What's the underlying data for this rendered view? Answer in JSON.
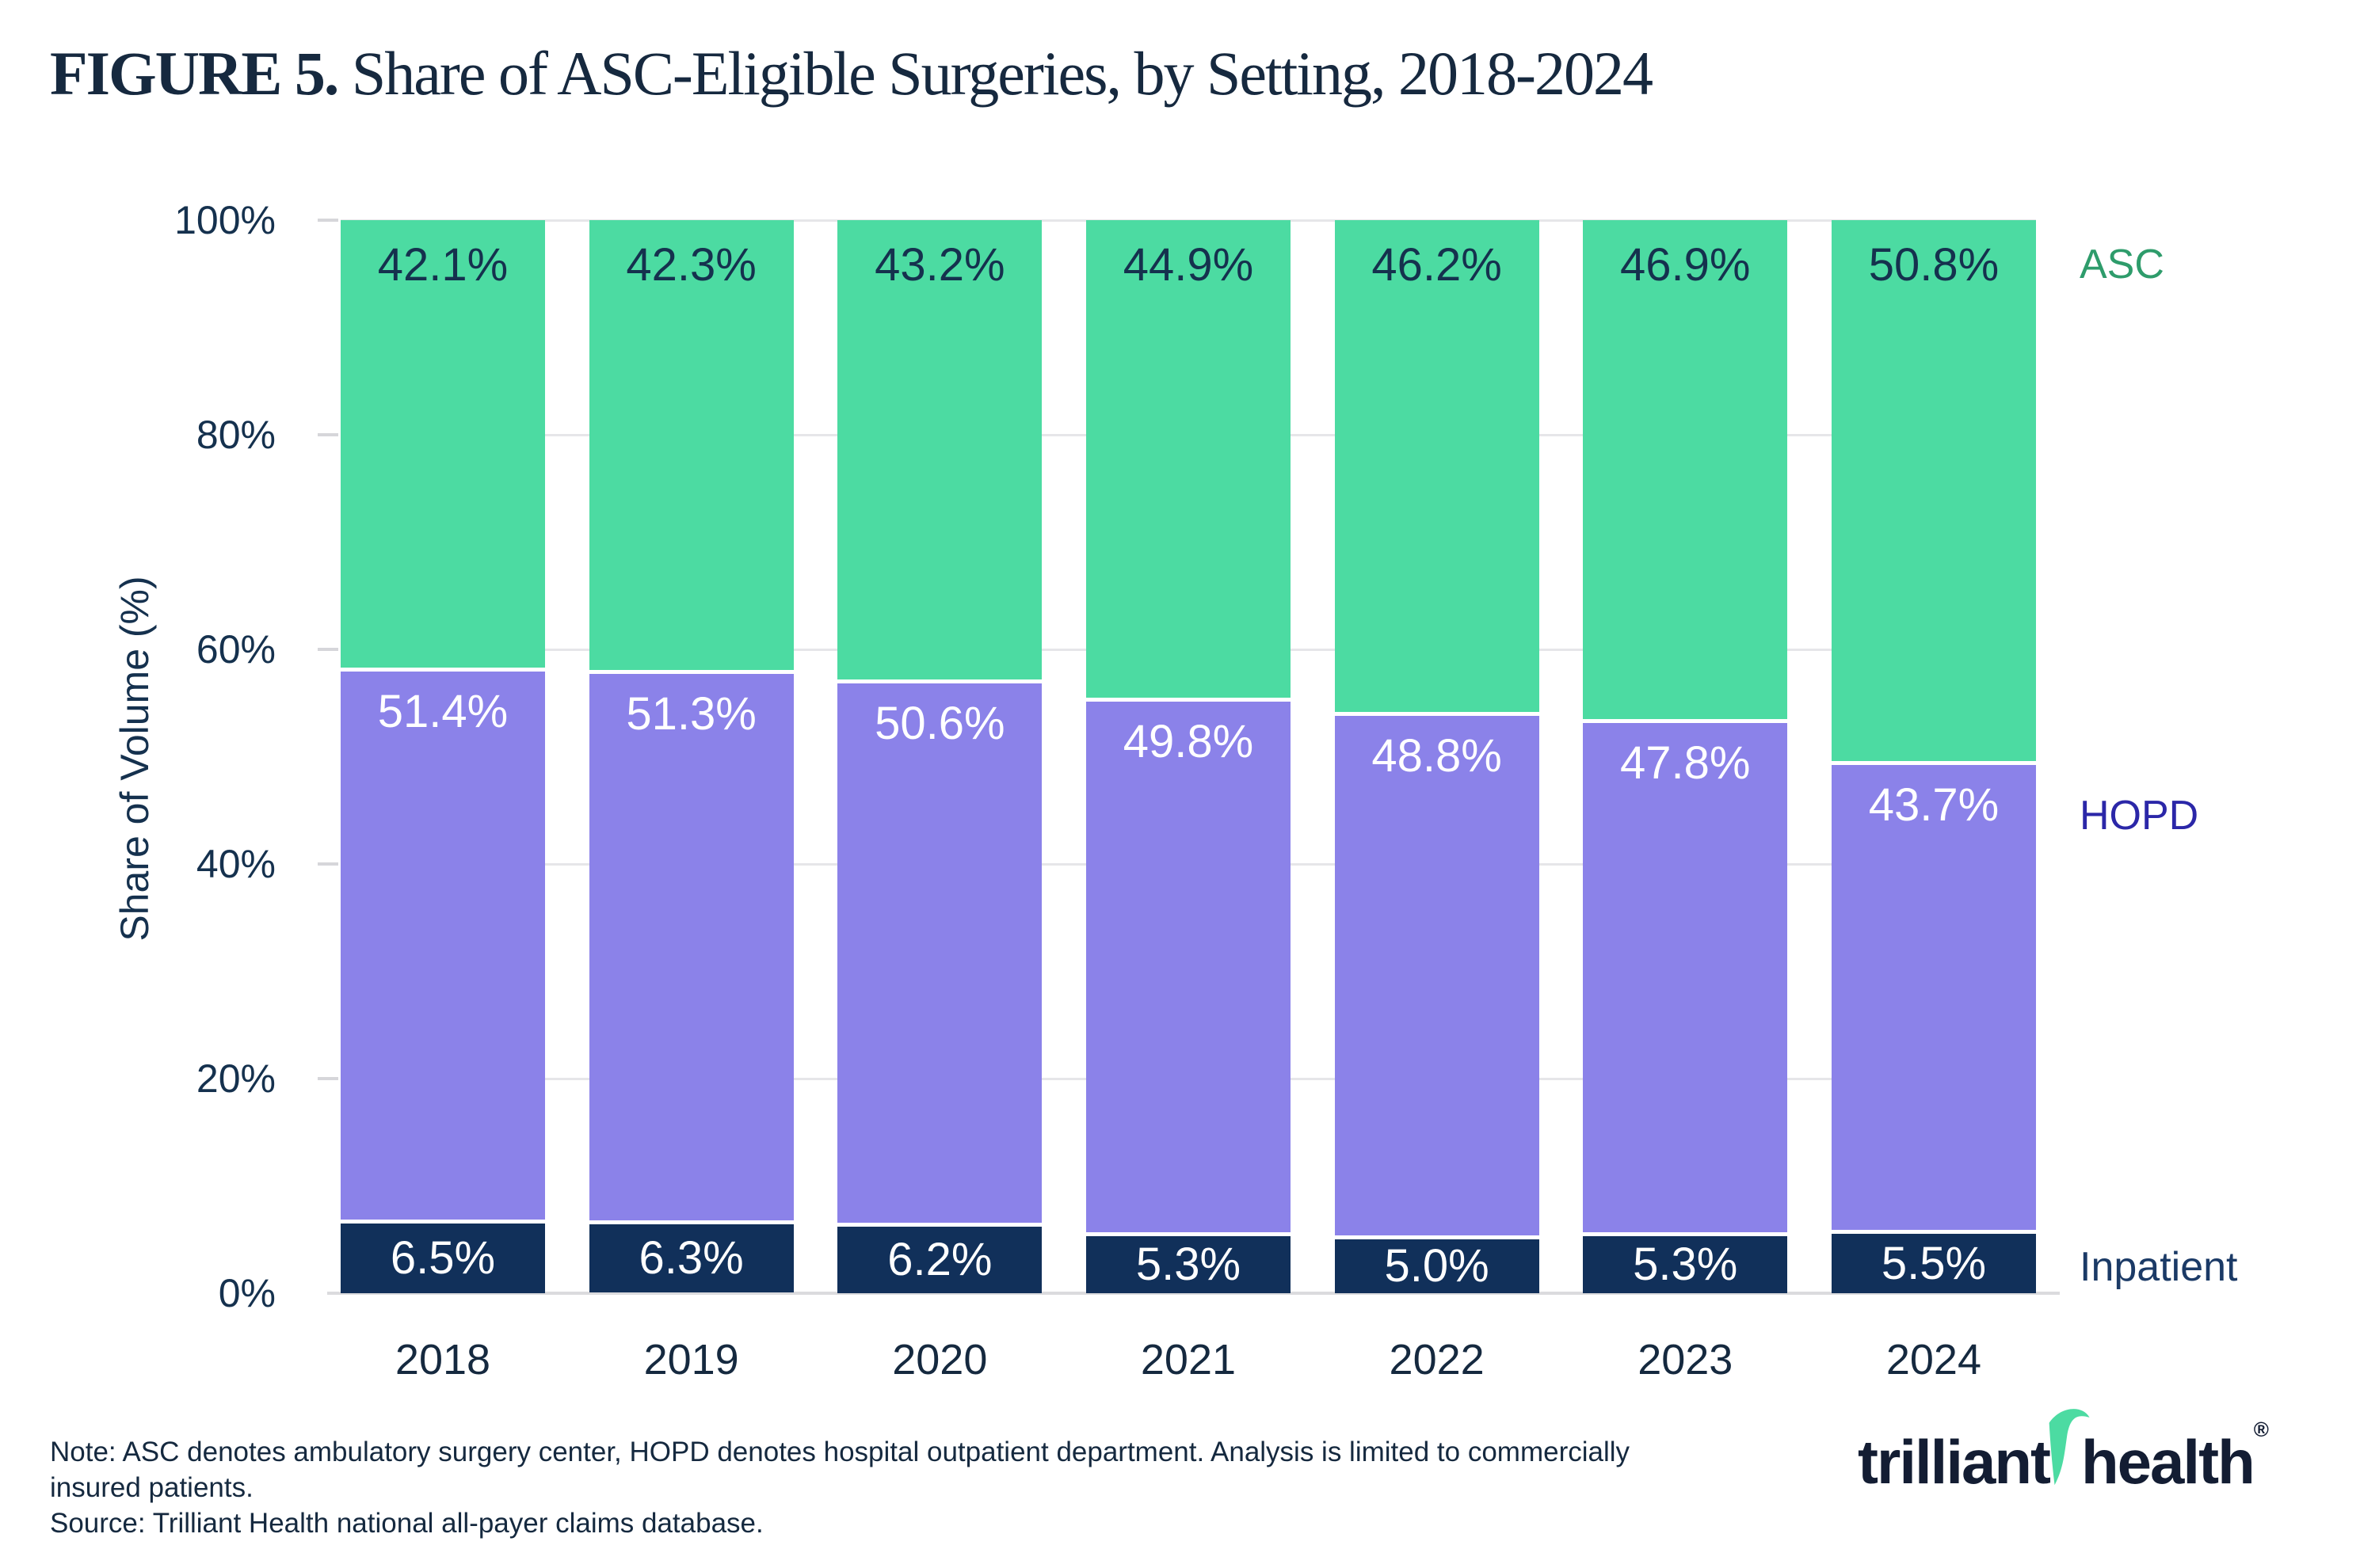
{
  "figure": {
    "label": "FIGURE 5.",
    "title": " Share of ASC-Eligible Surgeries, by Setting, 2018-2024"
  },
  "chart_data": {
    "type": "bar",
    "stacked": true,
    "title": "Share of ASC-Eligible Surgeries, by Setting, 2018-2024",
    "xlabel": "",
    "ylabel": "Share of Volume (%)",
    "ylim": [
      0,
      100
    ],
    "yticks": [
      0,
      20,
      40,
      60,
      80,
      100
    ],
    "ytick_suffix": "%",
    "grid": "horizontal",
    "legend_position": "right",
    "categories": [
      "2018",
      "2019",
      "2020",
      "2021",
      "2022",
      "2023",
      "2024"
    ],
    "series": [
      {
        "name": "ASC",
        "color": "#4CDBA2",
        "label_color": "#15314E",
        "values": [
          42.1,
          42.3,
          43.2,
          44.9,
          46.2,
          46.9,
          50.8
        ]
      },
      {
        "name": "HOPD",
        "color": "#8B82E9",
        "label_color": "#FFFFFF",
        "values": [
          51.4,
          51.3,
          50.6,
          49.8,
          48.8,
          47.8,
          43.7
        ]
      },
      {
        "name": "Inpatient",
        "color": "#11305A",
        "label_color": "#FFFFFF",
        "values": [
          6.5,
          6.3,
          6.2,
          5.3,
          5.0,
          5.3,
          5.5
        ]
      }
    ],
    "legend": [
      {
        "name": "ASC",
        "color": "#2E9C6B",
        "y_pct": 4.1
      },
      {
        "name": "HOPD",
        "color": "#2B27A8",
        "y_pct": 55.5
      },
      {
        "name": "Inpatient",
        "color": "#1B3A66",
        "y_pct": 97.6
      }
    ]
  },
  "note": "Note: ASC denotes ambulatory surgery center, HOPD denotes hospital outpatient department. Analysis is limited to commercially insured patients.",
  "source": "Source: Trilliant Health national all-payer claims database.",
  "logo": {
    "word1": "trilliant",
    "word2": "health",
    "reg": "®",
    "swoosh_color": "#4CDBA2"
  }
}
